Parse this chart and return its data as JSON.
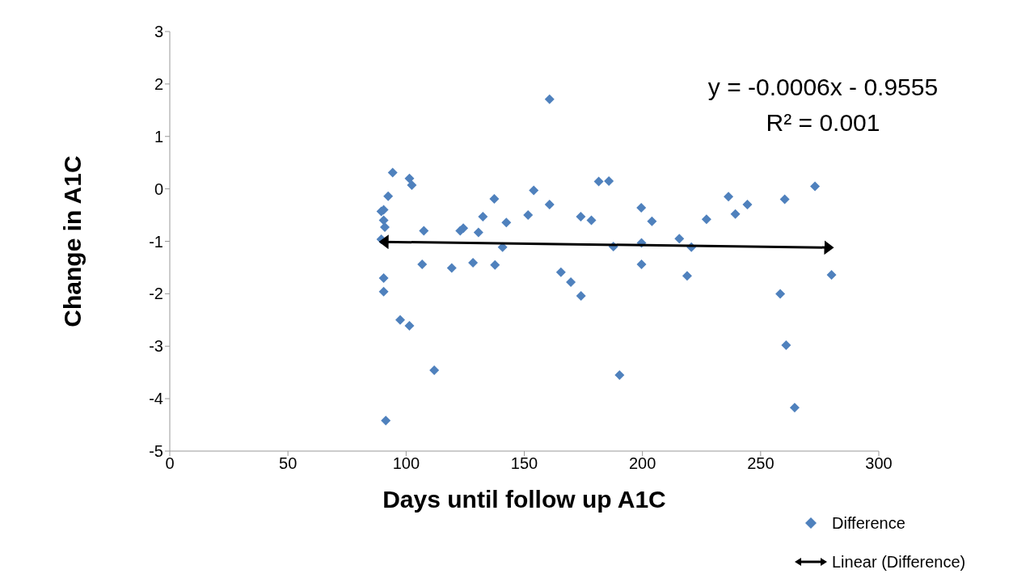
{
  "chart_data": {
    "type": "scatter",
    "xlabel": "Days until follow up A1C",
    "ylabel": "Change in A1C",
    "xlim": [
      0,
      300
    ],
    "xticks": [
      0,
      50,
      100,
      150,
      200,
      250,
      300
    ],
    "ylim": [
      -5,
      3
    ],
    "yticks": [
      -5,
      -4,
      -3,
      -2,
      -1,
      0,
      1,
      2,
      3
    ],
    "legend": "bottom right",
    "annotations": [
      "y = -0.0006x - 0.9555",
      "R² = 0.001"
    ],
    "series": [
      {
        "name": "Difference",
        "marker": "diamond",
        "color": "#4f81bd",
        "x": [
          89.5,
          90.5,
          90.5,
          91,
          92.4,
          94.3,
          101.4,
          102.4,
          89.5,
          90.5,
          90.5,
          97.5,
          101.4,
          107.5,
          106.8,
          111.9,
          91.4,
          119.3,
          122.9,
          124.2,
          128.3,
          130.6,
          132.5,
          137.3,
          137.6,
          140.8,
          142.4,
          151.6,
          154,
          160.7,
          160.7,
          165.5,
          169.7,
          173.9,
          174,
          178.4,
          181.5,
          185.8,
          187.7,
          190.3,
          199.5,
          199.6,
          199.6,
          204,
          215.6,
          218.9,
          220.7,
          227.1,
          236.4,
          239.3,
          244.4,
          258.3,
          260.2,
          260.8,
          264.4,
          273,
          280
        ],
        "values": [
          -0.43,
          -0.4,
          -0.6,
          -0.73,
          -0.14,
          0.31,
          0.2,
          0.07,
          -0.96,
          -1.7,
          -1.96,
          -2.5,
          -2.61,
          -0.8,
          -1.44,
          -3.46,
          -4.42,
          -1.51,
          -0.8,
          -0.75,
          -1.41,
          -0.83,
          -0.53,
          -0.19,
          -1.45,
          -1.11,
          -0.64,
          -0.5,
          -0.03,
          -0.3,
          1.71,
          -1.59,
          -1.78,
          -0.53,
          -2.04,
          -0.6,
          0.14,
          0.15,
          -1.1,
          -3.55,
          -0.36,
          -1.03,
          -1.44,
          -0.62,
          -0.95,
          -1.66,
          -1.11,
          -0.58,
          -0.15,
          -0.48,
          -0.3,
          -2.0,
          -0.2,
          -2.98,
          -4.17,
          0.05,
          -1.64
        ]
      },
      {
        "name": "Linear (Difference)",
        "type": "line",
        "marker": "none",
        "color": "#000000",
        "x": [
          89.5,
          280
        ],
        "values": [
          -1.01,
          -1.12
        ]
      }
    ]
  }
}
